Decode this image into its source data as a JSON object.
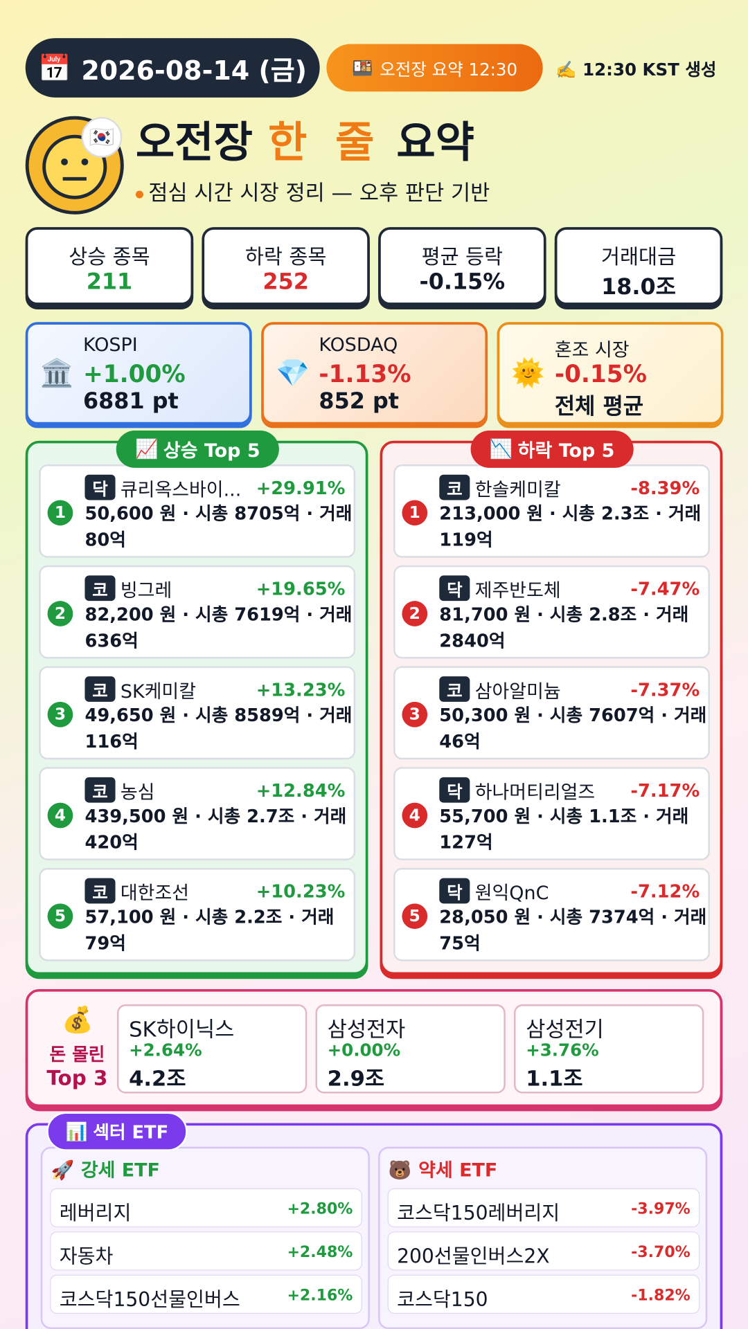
{
  "header": {
    "date_badge": "2026-08-14 (금)",
    "session_badge": "오전장 요약 12:30",
    "generated": "12:30 KST 생성",
    "title_parts": [
      "오전장",
      "한 줄",
      "요약"
    ],
    "subtitle": "점심 시간 시장 정리 — 오후 판단 기반"
  },
  "stats": [
    {
      "label": "상승 종목",
      "value": "211",
      "color": "#1f9a3e"
    },
    {
      "label": "하락 종목",
      "value": "252",
      "color": "#d92b2b"
    },
    {
      "label": "평균 등락",
      "value": "-0.15%",
      "color": "#111827"
    },
    {
      "label": "거래대금",
      "value": "18.0조",
      "color": "#111827"
    }
  ],
  "indices": [
    {
      "name": "KOSPI",
      "change": "+1.00%",
      "level": "6881 pt"
    },
    {
      "name": "KOSDAQ",
      "change": "-1.13%",
      "level": "852 pt"
    },
    {
      "name": "혼조 시장",
      "change": "-0.15%",
      "level": "전체 평균"
    }
  ],
  "gainers": {
    "title": "상승 Top 5",
    "items": [
      {
        "rank": "1",
        "market": "닥",
        "name": "큐리옥스바이...",
        "change": "+29.91%",
        "detail": "50,600 원 · 시총 8705억 · 거래 80억"
      },
      {
        "rank": "2",
        "market": "코",
        "name": "빙그레",
        "change": "+19.65%",
        "detail": "82,200 원 · 시총 7619억 · 거래 636억"
      },
      {
        "rank": "3",
        "market": "코",
        "name": "SK케미칼",
        "change": "+13.23%",
        "detail": "49,650 원 · 시총 8589억 · 거래 116억"
      },
      {
        "rank": "4",
        "market": "코",
        "name": "농심",
        "change": "+12.84%",
        "detail": "439,500 원 · 시총 2.7조 · 거래 420억"
      },
      {
        "rank": "5",
        "market": "코",
        "name": "대한조선",
        "change": "+10.23%",
        "detail": "57,100 원 · 시총 2.2조 · 거래 79억"
      }
    ]
  },
  "losers": {
    "title": "하락 Top 5",
    "items": [
      {
        "rank": "1",
        "market": "코",
        "name": "한솔케미칼",
        "change": "-8.39%",
        "detail": "213,000 원 · 시총 2.3조 · 거래 119억"
      },
      {
        "rank": "2",
        "market": "닥",
        "name": "제주반도체",
        "change": "-7.47%",
        "detail": "81,700 원 · 시총 2.8조 · 거래 2840억"
      },
      {
        "rank": "3",
        "market": "코",
        "name": "삼아알미늄",
        "change": "-7.37%",
        "detail": "50,300 원 · 시총 7607억 · 거래 46억"
      },
      {
        "rank": "4",
        "market": "닥",
        "name": "하나머티리얼즈",
        "change": "-7.17%",
        "detail": "55,700 원 · 시총 1.1조 · 거래 127억"
      },
      {
        "rank": "5",
        "market": "닥",
        "name": "원익QnC",
        "change": "-7.12%",
        "detail": "28,050 원 · 시총 7374억 · 거래 75억"
      }
    ]
  },
  "money_top": {
    "title_lines": [
      "돈 몰린",
      "Top 3"
    ],
    "items": [
      {
        "name": "SK하이닉스",
        "change": "+2.64%",
        "amount": "4.2조"
      },
      {
        "name": "삼성전자",
        "change": "+0.00%",
        "amount": "2.9조"
      },
      {
        "name": "삼성전기",
        "change": "+3.76%",
        "amount": "1.1조"
      }
    ]
  },
  "etf": {
    "title": "섹터 ETF",
    "strong": {
      "title": "강세 ETF",
      "items": [
        {
          "name": "레버리지",
          "change": "+2.80%"
        },
        {
          "name": "자동차",
          "change": "+2.48%"
        },
        {
          "name": "코스닥150선물인버스",
          "change": "+2.16%"
        }
      ]
    },
    "weak": {
      "title": "약세 ETF",
      "items": [
        {
          "name": "코스닥150레버리지",
          "change": "-3.97%"
        },
        {
          "name": "200선물인버스2X",
          "change": "-3.70%"
        },
        {
          "name": "코스닥150",
          "change": "-1.82%"
        }
      ]
    }
  }
}
